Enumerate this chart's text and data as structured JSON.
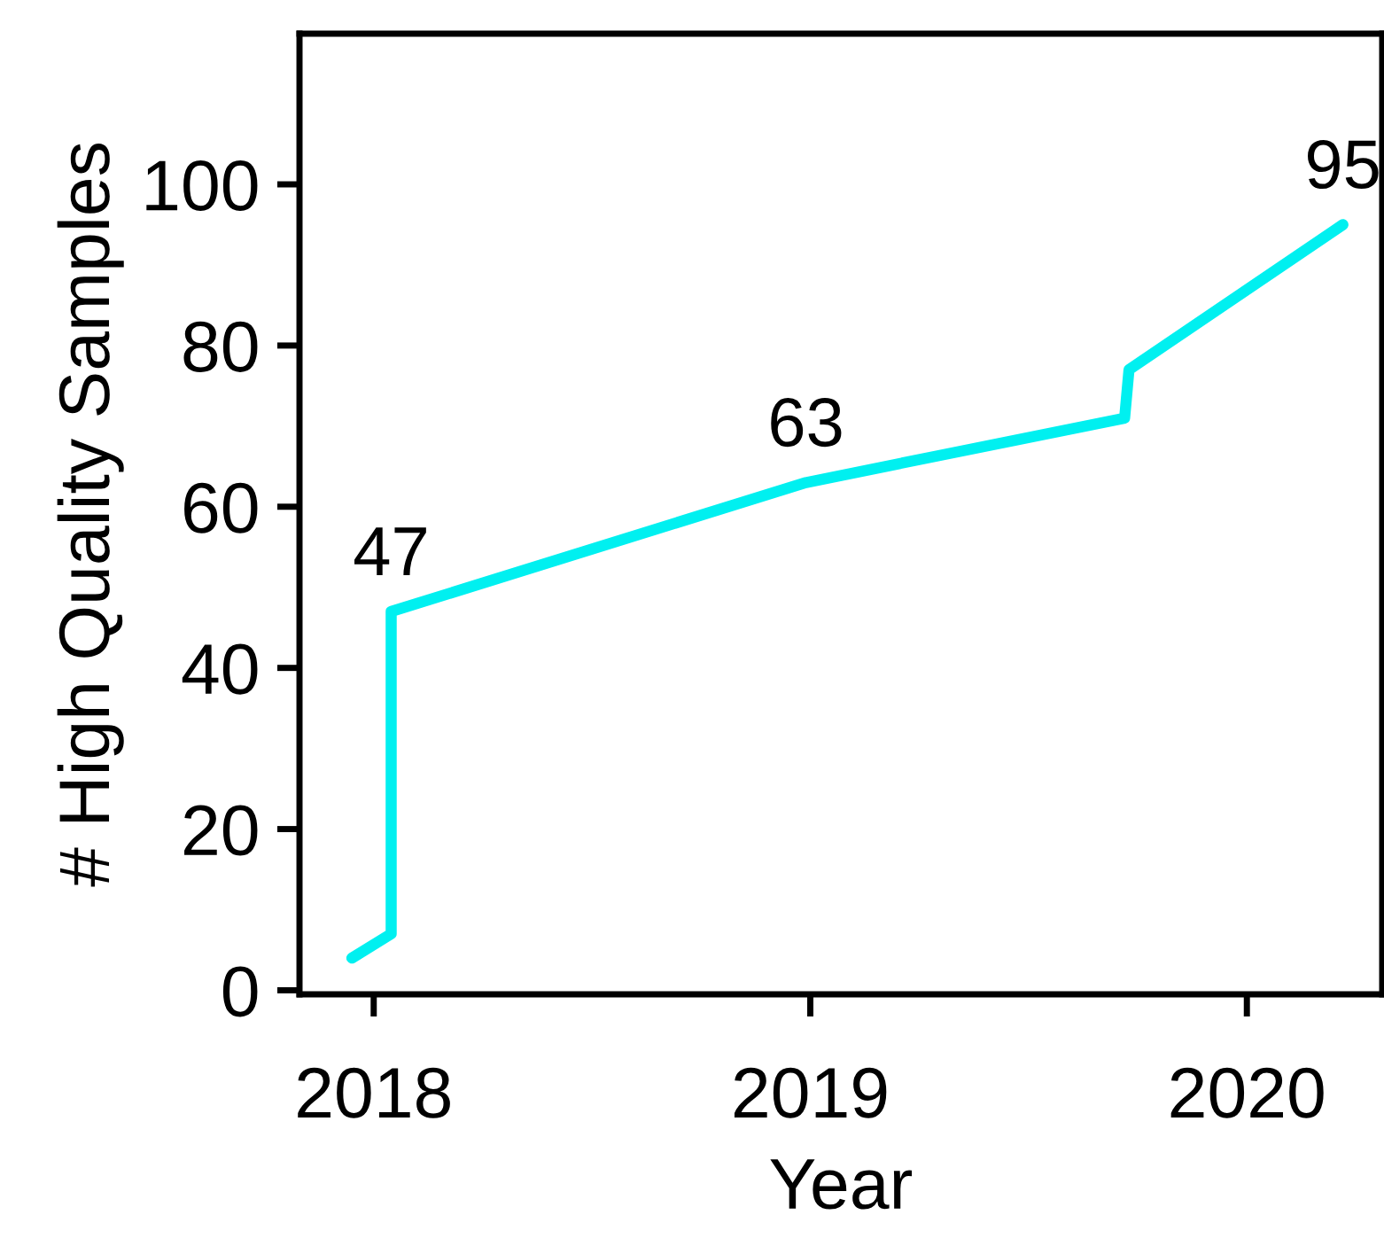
{
  "chart_data": {
    "type": "line",
    "xlabel": "Year",
    "ylabel": "# High Quality Samples",
    "series": [
      {
        "color": "#00f0f0",
        "x": [
          2017.95,
          2018.04,
          2018.04,
          2018.99,
          2019.72,
          2019.73,
          2020.22
        ],
        "values": [
          4,
          7,
          47,
          63,
          71,
          77,
          95
        ],
        "value_labels": [
          null,
          null,
          "47",
          "63",
          null,
          null,
          "95"
        ]
      }
    ],
    "xlim": [
      2017.83,
      2020.31
    ],
    "xticks": [
      2018,
      2019,
      2020
    ],
    "ylim": [
      -0.5,
      118.7
    ],
    "yticks": [
      0,
      20,
      40,
      60,
      80,
      100
    ],
    "grid": false,
    "legend": false,
    "line_style": "solid"
  }
}
